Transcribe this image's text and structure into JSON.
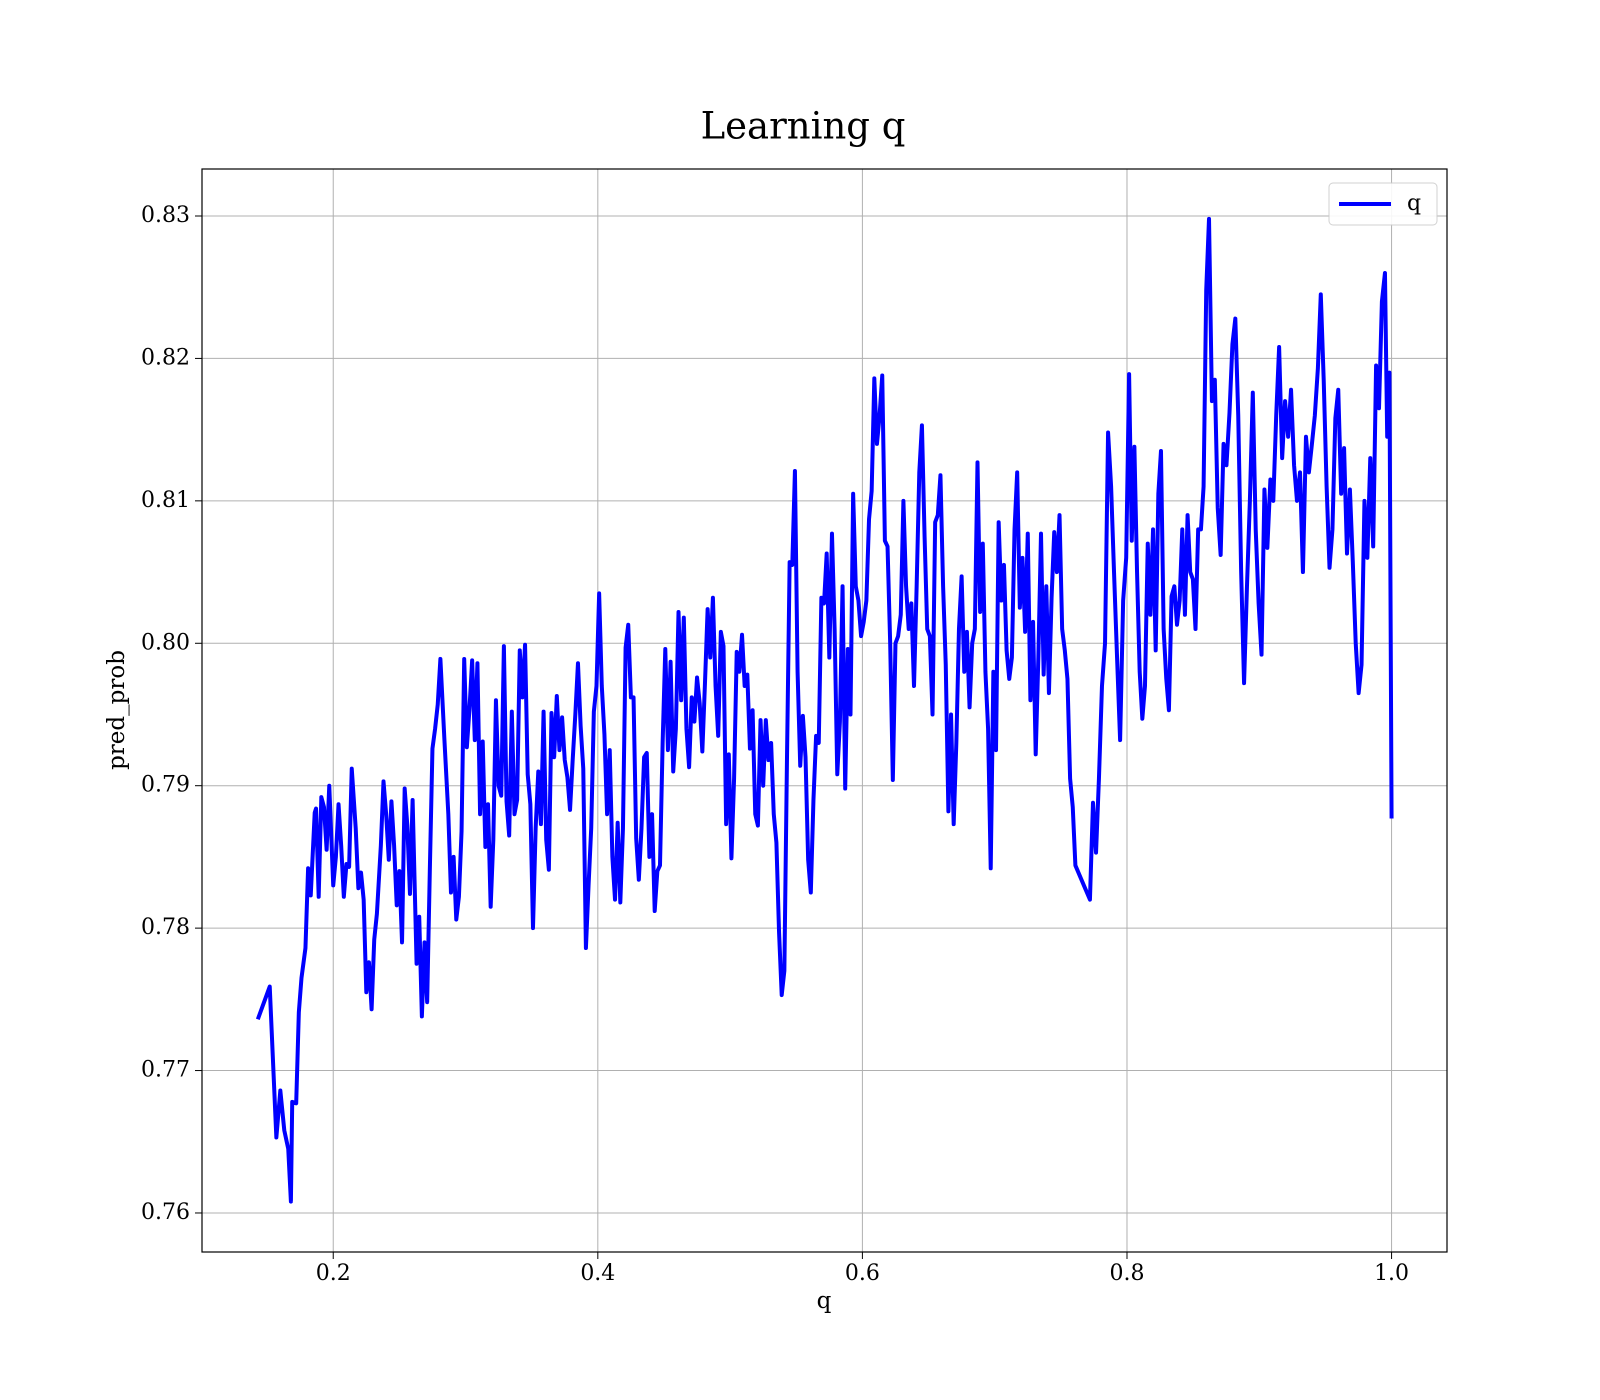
{
  "chart_data": {
    "type": "line",
    "title": "Learning q",
    "xlabel": "q",
    "ylabel": "pred_prob",
    "xlim": [
      0.1008,
      1.0419
    ],
    "ylim": [
      0.75726,
      0.8333
    ],
    "xticks": [
      0.2,
      0.4,
      0.6,
      0.8,
      {
        "value": 1,
        "label": "1.0"
      }
    ],
    "yticks": [
      0.76,
      0.77,
      0.78,
      0.79,
      {
        "value": 0.8,
        "label": "0.80"
      },
      0.81,
      0.82,
      0.83
    ],
    "grid": true,
    "legend": "upper right",
    "x": [
      0.143,
      0.152,
      0.157,
      0.16,
      0.163,
      0.166,
      0.168,
      0.169,
      0.172,
      0.174,
      0.176,
      0.179,
      0.181,
      0.183,
      0.186,
      0.187,
      0.189,
      0.191,
      0.193,
      0.195,
      0.197,
      0.2,
      0.202,
      0.204,
      0.206,
      0.208,
      0.21,
      0.212,
      0.214,
      0.217,
      0.219,
      0.221,
      0.223,
      0.225,
      0.227,
      0.229,
      0.231,
      0.233,
      0.236,
      0.238,
      0.24,
      0.242,
      0.244,
      0.246,
      0.248,
      0.25,
      0.252,
      0.254,
      0.256,
      0.258,
      0.26,
      0.263,
      0.265,
      0.267,
      0.269,
      0.271,
      0.273,
      0.275,
      0.277,
      0.279,
      0.281,
      0.284,
      0.287,
      0.289,
      0.291,
      0.293,
      0.295,
      0.297,
      0.299,
      0.301,
      0.303,
      0.305,
      0.307,
      0.309,
      0.311,
      0.313,
      0.315,
      0.317,
      0.319,
      0.321,
      0.323,
      0.325,
      0.327,
      0.329,
      0.331,
      0.333,
      0.335,
      0.337,
      0.339,
      0.341,
      0.343,
      0.345,
      0.347,
      0.349,
      0.351,
      0.353,
      0.355,
      0.357,
      0.359,
      0.361,
      0.363,
      0.365,
      0.367,
      0.369,
      0.371,
      0.373,
      0.375,
      0.377,
      0.379,
      0.381,
      0.383,
      0.385,
      0.387,
      0.389,
      0.391,
      0.393,
      0.395,
      0.397,
      0.399,
      0.401,
      0.403,
      0.405,
      0.407,
      0.409,
      0.411,
      0.413,
      0.415,
      0.417,
      0.419,
      0.421,
      0.423,
      0.425,
      0.427,
      0.429,
      0.431,
      0.433,
      0.435,
      0.437,
      0.439,
      0.441,
      0.443,
      0.445,
      0.447,
      0.449,
      0.451,
      0.453,
      0.455,
      0.457,
      0.459,
      0.461,
      0.463,
      0.465,
      0.467,
      0.469,
      0.471,
      0.473,
      0.475,
      0.477,
      0.479,
      0.481,
      0.483,
      0.485,
      0.487,
      0.489,
      0.491,
      0.493,
      0.495,
      0.497,
      0.499,
      0.501,
      0.503,
      0.505,
      0.507,
      0.509,
      0.511,
      0.513,
      0.515,
      0.517,
      0.519,
      0.521,
      0.523,
      0.525,
      0.527,
      0.529,
      0.531,
      0.533,
      0.535,
      0.537,
      0.539,
      0.541,
      0.543,
      0.545,
      0.547,
      0.549,
      0.551,
      0.553,
      0.555,
      0.557,
      0.559,
      0.561,
      0.563,
      0.565,
      0.567,
      0.569,
      0.571,
      0.573,
      0.575,
      0.577,
      0.579,
      0.581,
      0.583,
      0.585,
      0.587,
      0.589,
      0.591,
      0.593,
      0.595,
      0.597,
      0.599,
      0.601,
      0.603,
      0.605,
      0.607,
      0.609,
      0.611,
      0.613,
      0.615,
      0.617,
      0.619,
      0.621,
      0.623,
      0.625,
      0.627,
      0.629,
      0.631,
      0.633,
      0.635,
      0.637,
      0.639,
      0.641,
      0.643,
      0.645,
      0.647,
      0.649,
      0.651,
      0.653,
      0.655,
      0.657,
      0.659,
      0.661,
      0.663,
      0.665,
      0.667,
      0.669,
      0.671,
      0.673,
      0.675,
      0.677,
      0.679,
      0.681,
      0.683,
      0.685,
      0.687,
      0.689,
      0.691,
      0.693,
      0.695,
      0.697,
      0.699,
      0.701,
      0.703,
      0.705,
      0.707,
      0.709,
      0.711,
      0.713,
      0.715,
      0.717,
      0.719,
      0.721,
      0.723,
      0.725,
      0.727,
      0.729,
      0.731,
      0.733,
      0.735,
      0.737,
      0.739,
      0.741,
      0.743,
      0.745,
      0.747,
      0.749,
      0.751,
      0.753,
      0.755,
      0.757,
      0.759,
      0.761,
      0.772,
      0.7743,
      0.7766,
      0.7788,
      0.7811,
      0.7834,
      0.7857,
      0.788,
      0.7902,
      0.7925,
      0.7948,
      0.7971,
      0.7994,
      0.8016,
      0.8036,
      0.8056,
      0.8076,
      0.8096,
      0.8116,
      0.8136,
      0.8157,
      0.8177,
      0.8197,
      0.8217,
      0.8237,
      0.8257,
      0.8277,
      0.8297,
      0.8317,
      0.8337,
      0.8358,
      0.8378,
      0.8398,
      0.8418,
      0.8438,
      0.8458,
      0.8478,
      0.8498,
      0.8518,
      0.8538,
      0.8559,
      0.8579,
      0.8599,
      0.862,
      0.8642,
      0.8664,
      0.8686,
      0.8708,
      0.873,
      0.8752,
      0.8775,
      0.8797,
      0.8819,
      0.8841,
      0.8863,
      0.8885,
      0.8907,
      0.8929,
      0.8951,
      0.8973,
      0.8995,
      0.9017,
      0.9039,
      0.9061,
      0.9084,
      0.9106,
      0.9128,
      0.915,
      0.9173,
      0.9195,
      0.9218,
      0.924,
      0.9263,
      0.9285,
      0.9308,
      0.933,
      0.9353,
      0.9375,
      0.9398,
      0.942,
      0.9443,
      0.9465,
      0.9487,
      0.9509,
      0.9531,
      0.9553,
      0.9575,
      0.9597,
      0.9619,
      0.9641,
      0.9663,
      0.9685,
      0.9707,
      0.9729,
      0.9751,
      0.9773,
      0.9795,
      0.9817,
      0.9839,
      0.9861,
      0.9883,
      0.9905,
      0.9927,
      0.995,
      0.9967,
      0.9984,
      1.0
    ],
    "series": [
      {
        "name": "q",
        "color": "#0000ff",
        "values": [
          0.7736,
          0.7759,
          0.7653,
          0.7686,
          0.7658,
          0.7645,
          0.7608,
          0.7678,
          0.7677,
          0.7741,
          0.7765,
          0.7786,
          0.7842,
          0.7823,
          0.7881,
          0.7884,
          0.7822,
          0.7892,
          0.7885,
          0.7855,
          0.79,
          0.783,
          0.785,
          0.7887,
          0.7858,
          0.7822,
          0.7845,
          0.7843,
          0.7912,
          0.787,
          0.7828,
          0.7839,
          0.782,
          0.7755,
          0.7776,
          0.7743,
          0.7792,
          0.781,
          0.7858,
          0.7903,
          0.788,
          0.7848,
          0.7889,
          0.7858,
          0.7816,
          0.784,
          0.779,
          0.7898,
          0.7872,
          0.7824,
          0.789,
          0.7775,
          0.7808,
          0.7738,
          0.779,
          0.7748,
          0.784,
          0.7926,
          0.794,
          0.7957,
          0.7989,
          0.7933,
          0.788,
          0.7825,
          0.785,
          0.7806,
          0.7822,
          0.7868,
          0.7989,
          0.7927,
          0.7954,
          0.7988,
          0.7932,
          0.7986,
          0.788,
          0.7931,
          0.7857,
          0.7887,
          0.7815,
          0.7862,
          0.796,
          0.79,
          0.7893,
          0.7998,
          0.7889,
          0.7865,
          0.7952,
          0.788,
          0.789,
          0.7995,
          0.7962,
          0.7999,
          0.7908,
          0.7887,
          0.78,
          0.787,
          0.791,
          0.7873,
          0.7952,
          0.7862,
          0.7841,
          0.7951,
          0.792,
          0.7963,
          0.7925,
          0.7948,
          0.7918,
          0.7906,
          0.7883,
          0.7918,
          0.795,
          0.7986,
          0.7942,
          0.7912,
          0.7786,
          0.783,
          0.787,
          0.7952,
          0.797,
          0.8035,
          0.797,
          0.7936,
          0.788,
          0.7925,
          0.785,
          0.782,
          0.7874,
          0.7818,
          0.787,
          0.7997,
          0.8013,
          0.7962,
          0.7962,
          0.7863,
          0.7834,
          0.787,
          0.792,
          0.7923,
          0.785,
          0.788,
          0.7812,
          0.784,
          0.7844,
          0.793,
          0.7996,
          0.7925,
          0.7987,
          0.791,
          0.794,
          0.8022,
          0.796,
          0.8018,
          0.794,
          0.7913,
          0.7962,
          0.7945,
          0.7976,
          0.7958,
          0.7924,
          0.7972,
          0.8024,
          0.799,
          0.8032,
          0.797,
          0.7935,
          0.8008,
          0.7998,
          0.7873,
          0.7922,
          0.7849,
          0.7905,
          0.7994,
          0.798,
          0.8006,
          0.797,
          0.7978,
          0.7926,
          0.7953,
          0.788,
          0.7872,
          0.7946,
          0.79,
          0.7946,
          0.7918,
          0.793,
          0.788,
          0.786,
          0.7797,
          0.7753,
          0.777,
          0.792,
          0.8057,
          0.8055,
          0.8121,
          0.798,
          0.7914,
          0.7949,
          0.792,
          0.7848,
          0.7825,
          0.789,
          0.7935,
          0.793,
          0.8032,
          0.8028,
          0.8063,
          0.799,
          0.8077,
          0.801,
          0.7908,
          0.7945,
          0.804,
          0.7898,
          0.7996,
          0.795,
          0.8105,
          0.804,
          0.803,
          0.8005,
          0.8015,
          0.803,
          0.8087,
          0.8107,
          0.8186,
          0.814,
          0.816,
          0.8188,
          0.8072,
          0.8068,
          0.8,
          0.7904,
          0.8,
          0.8005,
          0.802,
          0.81,
          0.804,
          0.801,
          0.8028,
          0.797,
          0.804,
          0.812,
          0.8153,
          0.8075,
          0.801,
          0.8005,
          0.795,
          0.8085,
          0.809,
          0.8118,
          0.804,
          0.7985,
          0.7882,
          0.795,
          0.7873,
          0.793,
          0.801,
          0.8047,
          0.798,
          0.8008,
          0.7955,
          0.8,
          0.801,
          0.8127,
          0.8022,
          0.807,
          0.798,
          0.794,
          0.7842,
          0.798,
          0.7925,
          0.8085,
          0.803,
          0.8055,
          0.7995,
          0.7975,
          0.799,
          0.808,
          0.812,
          0.8025,
          0.806,
          0.8008,
          0.8077,
          0.796,
          0.8015,
          0.7922,
          0.799,
          0.8077,
          0.7978,
          0.804,
          0.7965,
          0.8032,
          0.8078,
          0.805,
          0.809,
          0.801,
          0.7995,
          0.7975,
          0.7905,
          0.7885,
          0.7844,
          0.782,
          0.7888,
          0.7853,
          0.7905,
          0.797,
          0.8,
          0.8148,
          0.811,
          0.805,
          0.799,
          0.7932,
          0.803,
          0.806,
          0.8189,
          0.8072,
          0.8138,
          0.805,
          0.798,
          0.7947,
          0.797,
          0.807,
          0.802,
          0.808,
          0.7995,
          0.8105,
          0.8135,
          0.801,
          0.7975,
          0.7953,
          0.8033,
          0.804,
          0.8013,
          0.803,
          0.808,
          0.802,
          0.809,
          0.805,
          0.8045,
          0.801,
          0.808,
          0.808,
          0.811,
          0.8248,
          0.8298,
          0.817,
          0.8185,
          0.8095,
          0.8062,
          0.814,
          0.8125,
          0.8162,
          0.821,
          0.8228,
          0.816,
          0.805,
          0.7972,
          0.804,
          0.81,
          0.8176,
          0.808,
          0.8028,
          0.7992,
          0.8108,
          0.8067,
          0.8115,
          0.81,
          0.816,
          0.8208,
          0.813,
          0.817,
          0.8145,
          0.8178,
          0.8125,
          0.81,
          0.812,
          0.805,
          0.8145,
          0.812,
          0.814,
          0.816,
          0.8193,
          0.8245,
          0.8185,
          0.811,
          0.8053,
          0.808,
          0.8158,
          0.8178,
          0.8105,
          0.8137,
          0.8063,
          0.8108,
          0.8057,
          0.8,
          0.7965,
          0.7985,
          0.81,
          0.806,
          0.813,
          0.8068,
          0.8195,
          0.8165,
          0.824,
          0.826,
          0.8145,
          0.819,
          0.7877
        ]
      }
    ]
  }
}
